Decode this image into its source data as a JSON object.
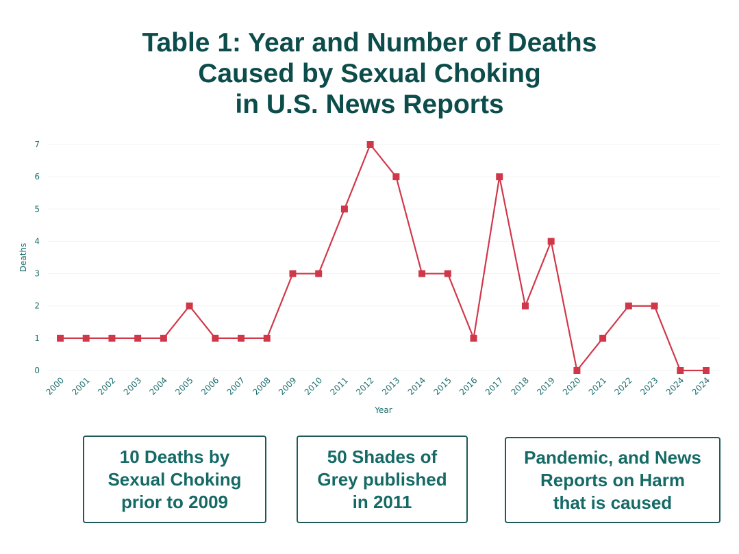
{
  "chart_data": {
    "type": "line",
    "title": "Table 1: Year and Number of Deaths\nCaused by Sexual Choking\nin U.S. News Reports",
    "xlabel": "Year",
    "ylabel": "Deaths",
    "categories": [
      "2000",
      "2001",
      "2002",
      "2003",
      "2004",
      "2005",
      "2006",
      "2007",
      "2008",
      "2009",
      "2010",
      "2011",
      "2012",
      "2013",
      "2014",
      "2015",
      "2016",
      "2017",
      "2018",
      "2019",
      "2020",
      "2021",
      "2022",
      "2023",
      "2024",
      "2024"
    ],
    "values": [
      1,
      1,
      1,
      1,
      1,
      2,
      1,
      1,
      1,
      3,
      3,
      5,
      7,
      6,
      3,
      3,
      1,
      6,
      2,
      4,
      0,
      1,
      2,
      2,
      0,
      0
    ],
    "ylim": [
      0,
      7
    ],
    "yticks": [
      "0",
      "1",
      "2",
      "3",
      "4",
      "5",
      "6",
      "7"
    ],
    "grid": true,
    "marker": "square",
    "line_color": "#d0384a",
    "text_color": "#1d6e6e"
  },
  "annotations": [
    "10 Deaths by\nSexual Choking\nprior to 2009",
    "50 Shades of\nGrey published\nin 2011",
    "Pandemic, and News\nReports on Harm\nthat is caused"
  ]
}
